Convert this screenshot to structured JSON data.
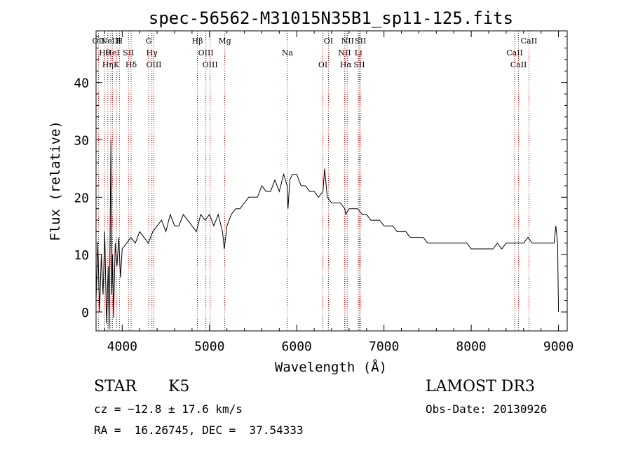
{
  "chart_data": {
    "type": "line",
    "title": "spec-56562-M31015N35B1_sp11-125.fits",
    "xlabel": "Wavelength (Å)",
    "ylabel": "Flux (relative)",
    "xlim": [
      3700,
      9100
    ],
    "ylim": [
      -3.3,
      49
    ],
    "x_ticks": [
      4000,
      5000,
      6000,
      7000,
      8000,
      9000
    ],
    "x_tick_labels": [
      "4000",
      "5000",
      "6000",
      "7000",
      "8000",
      "9000"
    ],
    "y_ticks": [
      0,
      10,
      20,
      30,
      40
    ],
    "y_tick_labels": [
      "0",
      "10",
      "20",
      "30",
      "40"
    ],
    "grid": false,
    "series": [
      {
        "name": "spectrum",
        "color": "#000000",
        "x": [
          3700,
          3720,
          3740,
          3760,
          3780,
          3800,
          3820,
          3840,
          3850,
          3860,
          3870,
          3880,
          3890,
          3900,
          3920,
          3940,
          3960,
          3980,
          4000,
          4050,
          4100,
          4150,
          4200,
          4250,
          4300,
          4350,
          4400,
          4450,
          4500,
          4550,
          4600,
          4650,
          4700,
          4750,
          4800,
          4850,
          4900,
          4950,
          5000,
          5050,
          5100,
          5150,
          5170,
          5200,
          5250,
          5300,
          5350,
          5400,
          5450,
          5500,
          5550,
          5600,
          5650,
          5700,
          5750,
          5800,
          5850,
          5890,
          5900,
          5920,
          5950,
          6000,
          6050,
          6100,
          6150,
          6200,
          6250,
          6300,
          6320,
          6350,
          6400,
          6450,
          6500,
          6550,
          6563,
          6600,
          6650,
          6700,
          6750,
          6800,
          6850,
          6900,
          6950,
          7000,
          7050,
          7100,
          7150,
          7200,
          7250,
          7300,
          7350,
          7400,
          7450,
          7500,
          7550,
          7600,
          7650,
          7700,
          7750,
          7800,
          7850,
          7900,
          7950,
          8000,
          8050,
          8100,
          8150,
          8200,
          8250,
          8300,
          8350,
          8400,
          8450,
          8500,
          8550,
          8600,
          8650,
          8700,
          8750,
          8800,
          8850,
          8900,
          8950,
          8970,
          8990,
          9000
        ],
        "y": [
          2,
          12,
          0,
          10,
          3,
          14,
          -2,
          8,
          -3,
          12,
          30,
          3,
          10,
          -1,
          12,
          8,
          13,
          6,
          11,
          12,
          13,
          12,
          14,
          13,
          12,
          14,
          15,
          16,
          14,
          17,
          15,
          15,
          17,
          16,
          15,
          14,
          17,
          16,
          17,
          15,
          17,
          14,
          11,
          15,
          17,
          18,
          18,
          19,
          20,
          20,
          20,
          22,
          21,
          21,
          23,
          21,
          24,
          22,
          18,
          23,
          24,
          24,
          22,
          22,
          21,
          21,
          20,
          21,
          25,
          20,
          19,
          19,
          19,
          18,
          17,
          18,
          18,
          18,
          17,
          17,
          16,
          16,
          16,
          15,
          15,
          15,
          14,
          14,
          14,
          13,
          13,
          13,
          13,
          12,
          12,
          12,
          12,
          12,
          12,
          12,
          12,
          12,
          12,
          11,
          11,
          11,
          11,
          11,
          11,
          12,
          11,
          12,
          12,
          12,
          12,
          12,
          13,
          12,
          12,
          12,
          12,
          12,
          12,
          15,
          12,
          0
        ]
      }
    ],
    "line_annotations": [
      {
        "x": 3727,
        "label": "OII"
      },
      {
        "x": 3798,
        "label": "Hθ"
      },
      {
        "x": 3835,
        "label": "Hη"
      },
      {
        "x": 3869,
        "label": "NeIII"
      },
      {
        "x": 3889,
        "label": "HeI"
      },
      {
        "x": 3934,
        "label": "K"
      },
      {
        "x": 3968,
        "label": "H"
      },
      {
        "x": 4072,
        "label": "SII"
      },
      {
        "x": 4102,
        "label": "Hδ"
      },
      {
        "x": 4304,
        "label": "G"
      },
      {
        "x": 4340,
        "label": "Hγ"
      },
      {
        "x": 4363,
        "label": "OIII"
      },
      {
        "x": 4861,
        "label": "Hβ"
      },
      {
        "x": 4959,
        "label": "OIII"
      },
      {
        "x": 5007,
        "label": "OIII"
      },
      {
        "x": 5175,
        "label": "Mg"
      },
      {
        "x": 5894,
        "label": "Na"
      },
      {
        "x": 6300,
        "label": "OI"
      },
      {
        "x": 6364,
        "label": "OI"
      },
      {
        "x": 6548,
        "label": "NII"
      },
      {
        "x": 6563,
        "label": "Hα"
      },
      {
        "x": 6583,
        "label": "NII"
      },
      {
        "x": 6707,
        "label": "Li"
      },
      {
        "x": 6717,
        "label": "SII"
      },
      {
        "x": 6731,
        "label": "SII"
      },
      {
        "x": 8498,
        "label": "CaII"
      },
      {
        "x": 8542,
        "label": "CaII"
      },
      {
        "x": 8662,
        "label": "CaII"
      }
    ],
    "annotation_color": "#c00000"
  },
  "info": {
    "object_type": "STAR",
    "subclass": "K5",
    "survey": "LAMOST DR3",
    "redshift": "cz = −12.8 ± 17.6 km/s",
    "obs_date": "Obs-Date: 20130926",
    "coords": "RA =  16.26745, DEC =  37.54333"
  }
}
